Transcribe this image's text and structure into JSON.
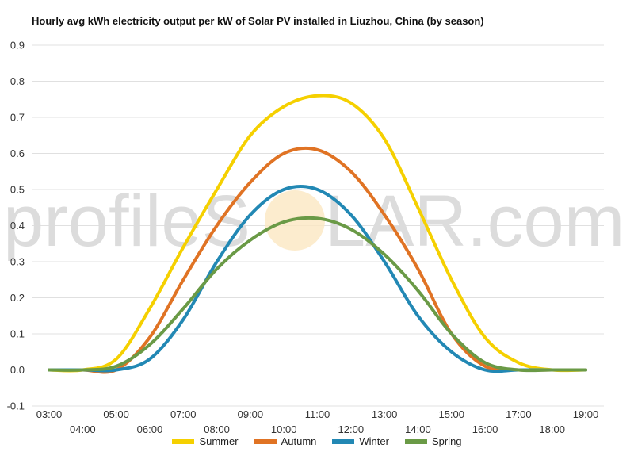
{
  "chart_data": {
    "type": "line",
    "title": "Hourly avg kWh electricity output per kW of Solar PV installed in Liuzhou, China (by season)",
    "xlabel": "",
    "ylabel": "",
    "x": [
      "03:00",
      "04:00",
      "05:00",
      "06:00",
      "07:00",
      "08:00",
      "09:00",
      "10:00",
      "11:00",
      "12:00",
      "13:00",
      "14:00",
      "15:00",
      "16:00",
      "17:00",
      "18:00",
      "19:00"
    ],
    "ylim": [
      -0.1,
      0.9
    ],
    "yticks": [
      "-0.1",
      "0.0",
      "0.1",
      "0.2",
      "0.3",
      "0.4",
      "0.5",
      "0.6",
      "0.7",
      "0.8",
      "0.9"
    ],
    "grid": true,
    "legend_position": "bottom",
    "series": [
      {
        "name": "Summer",
        "color": "#f5d000",
        "values": [
          0.0,
          0.0,
          0.03,
          0.17,
          0.34,
          0.5,
          0.65,
          0.73,
          0.76,
          0.74,
          0.64,
          0.45,
          0.25,
          0.09,
          0.02,
          0.0,
          0.0
        ]
      },
      {
        "name": "Autumn",
        "color": "#e07324",
        "values": [
          0.0,
          0.0,
          0.0,
          0.09,
          0.25,
          0.4,
          0.52,
          0.6,
          0.61,
          0.55,
          0.43,
          0.28,
          0.1,
          0.01,
          0.0,
          0.0,
          0.0
        ]
      },
      {
        "name": "Winter",
        "color": "#2288b4",
        "values": [
          0.0,
          0.0,
          0.0,
          0.03,
          0.14,
          0.3,
          0.43,
          0.5,
          0.5,
          0.43,
          0.3,
          0.15,
          0.05,
          0.0,
          0.0,
          0.0,
          0.0
        ]
      },
      {
        "name": "Spring",
        "color": "#6a9a46",
        "values": [
          0.0,
          0.0,
          0.01,
          0.07,
          0.17,
          0.28,
          0.36,
          0.41,
          0.42,
          0.39,
          0.32,
          0.22,
          0.1,
          0.02,
          0.0,
          0.0,
          0.0
        ]
      }
    ]
  },
  "watermark": {
    "left": "profileS",
    "right": "LAR.com"
  }
}
